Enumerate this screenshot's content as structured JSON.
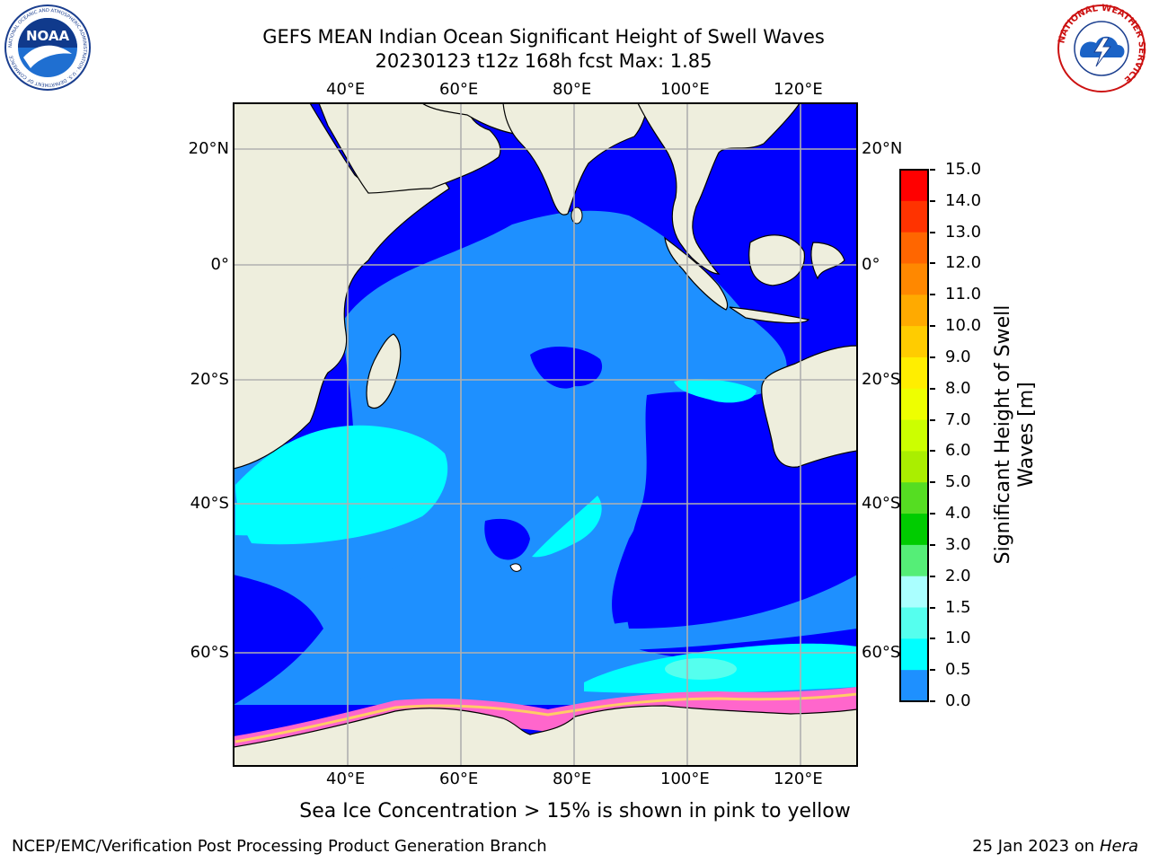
{
  "header": {
    "title_line1": "GEFS MEAN Indian Ocean Significant Height of Swell Waves",
    "title_line2": "20230123 t12z 168h fcst   Max: 1.85",
    "noaa_text": "NOAA",
    "noaa_ring_text": "NATIONAL OCEANIC AND ATMOSPHERIC ADMINISTRATION · U.S. DEPARTMENT OF COMMERCE",
    "nws_ring_text": "NATIONAL WEATHER SERVICE"
  },
  "map": {
    "lon_labels": [
      "40°E",
      "60°E",
      "80°E",
      "100°E",
      "120°E"
    ],
    "lat_labels": [
      "20°N",
      "0°",
      "20°S",
      "40°S",
      "60°S"
    ],
    "colors": {
      "land": "#eeeedd",
      "background_swell": "#0000ff",
      "mid_swell": "#1e90ff",
      "high_swell": "#00ffff",
      "ice": "#ff66cc",
      "grid": "#b0b0b0"
    }
  },
  "colorbar": {
    "label": "Significant Height of Swell Waves [m]",
    "label_line1": "Significant Height of Swell",
    "label_line2": "Waves [m]",
    "ticks": [
      "15.0",
      "14.0",
      "13.0",
      "12.0",
      "11.0",
      "10.0",
      "9.0",
      "8.0",
      "7.0",
      "6.0",
      "5.0",
      "4.0",
      "3.0",
      "2.0",
      "1.5",
      "1.0",
      "0.5",
      "0.0"
    ],
    "colors": [
      "#ff0000",
      "#ff3300",
      "#ff6600",
      "#ff8800",
      "#ffaa00",
      "#ffcc00",
      "#ffee00",
      "#eeff00",
      "#ccff00",
      "#aaee00",
      "#55dd22",
      "#00cc00",
      "#55ee77",
      "#aaffff",
      "#55ffee",
      "#00ffff",
      "#1e90ff",
      "#0000ff"
    ]
  },
  "note": "Sea Ice Concentration > 15% is shown in pink to yellow",
  "footer": {
    "left": "NCEP/EMC/Verification Post Processing Product Generation Branch",
    "right_prefix": "25 Jan 2023 on ",
    "right_italic": "Hera"
  }
}
